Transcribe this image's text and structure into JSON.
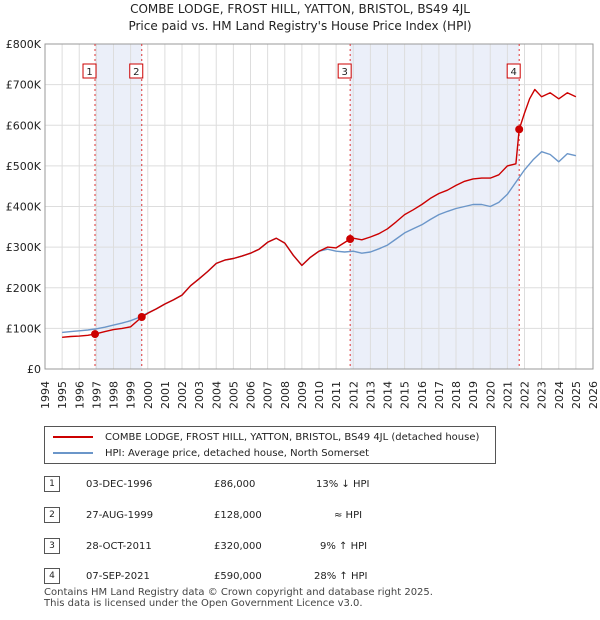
{
  "header": {
    "title": "COMBE LODGE, FROST HILL, YATTON, BRISTOL, BS49 4JL",
    "subtitle": "Price paid vs. HM Land Registry's House Price Index (HPI)"
  },
  "chart_data": {
    "type": "line",
    "xlim": [
      1994,
      2026
    ],
    "ylim": [
      0,
      800000
    ],
    "x_ticks": [
      1994,
      1995,
      1996,
      1997,
      1998,
      1999,
      2000,
      2001,
      2002,
      2003,
      2004,
      2005,
      2006,
      2007,
      2008,
      2009,
      2010,
      2011,
      2012,
      2013,
      2014,
      2015,
      2016,
      2017,
      2018,
      2019,
      2020,
      2021,
      2022,
      2023,
      2024,
      2025,
      2026
    ],
    "y_ticks": [
      {
        "value": 0,
        "label": "£0"
      },
      {
        "value": 100000,
        "label": "£100K"
      },
      {
        "value": 200000,
        "label": "£200K"
      },
      {
        "value": 300000,
        "label": "£300K"
      },
      {
        "value": 400000,
        "label": "£400K"
      },
      {
        "value": 500000,
        "label": "£500K"
      },
      {
        "value": 600000,
        "label": "£600K"
      },
      {
        "value": 700000,
        "label": "£700K"
      },
      {
        "value": 800000,
        "label": "£800K"
      }
    ],
    "grid": true,
    "series": [
      {
        "name": "COMBE LODGE, FROST HILL, YATTON, BRISTOL, BS49 4JL (detached house)",
        "color": "#cc0000",
        "x": [
          1995.0,
          1995.5,
          1996.0,
          1996.5,
          1996.92,
          1997.5,
          1998.0,
          1998.5,
          1999.0,
          1999.65,
          2000.0,
          2000.5,
          2001.0,
          2001.5,
          2002.0,
          2002.5,
          2003.0,
          2003.5,
          2004.0,
          2004.5,
          2005.0,
          2005.5,
          2006.0,
          2006.5,
          2007.0,
          2007.5,
          2008.0,
          2008.5,
          2009.0,
          2009.5,
          2010.0,
          2010.5,
          2011.0,
          2011.82,
          2012.0,
          2012.5,
          2013.0,
          2013.5,
          2014.0,
          2014.5,
          2015.0,
          2015.5,
          2016.0,
          2016.5,
          2017.0,
          2017.5,
          2018.0,
          2018.5,
          2019.0,
          2019.5,
          2020.0,
          2020.5,
          2021.0,
          2021.5,
          2021.69,
          2022.0,
          2022.3,
          2022.6,
          2023.0,
          2023.5,
          2024.0,
          2024.5,
          2025.0
        ],
        "y": [
          78000,
          80000,
          81000,
          83000,
          86000,
          92000,
          97000,
          100000,
          104000,
          128000,
          137000,
          148000,
          160000,
          170000,
          182000,
          205000,
          222000,
          240000,
          260000,
          268000,
          272000,
          278000,
          285000,
          295000,
          312000,
          322000,
          310000,
          280000,
          255000,
          275000,
          290000,
          300000,
          298000,
          320000,
          322000,
          318000,
          325000,
          333000,
          345000,
          362000,
          380000,
          392000,
          405000,
          420000,
          432000,
          440000,
          452000,
          462000,
          468000,
          470000,
          470000,
          478000,
          500000,
          505000,
          590000,
          630000,
          665000,
          688000,
          670000,
          680000,
          665000,
          680000,
          670000
        ]
      },
      {
        "name": "HPI: Average price, detached house, North Somerset",
        "color": "#6b96c9",
        "x": [
          1995.0,
          1995.5,
          1996.0,
          1996.5,
          1997.0,
          1997.5,
          1998.0,
          1998.5,
          1999.0,
          1999.5,
          2000.0,
          2000.5,
          2001.0,
          2001.5,
          2002.0,
          2002.5,
          2003.0,
          2003.5,
          2004.0,
          2004.5,
          2005.0,
          2005.5,
          2006.0,
          2006.5,
          2007.0,
          2007.5,
          2008.0,
          2008.5,
          2009.0,
          2009.5,
          2010.0,
          2010.5,
          2011.0,
          2011.5,
          2012.0,
          2012.5,
          2013.0,
          2013.5,
          2014.0,
          2014.5,
          2015.0,
          2015.5,
          2016.0,
          2016.5,
          2017.0,
          2017.5,
          2018.0,
          2018.5,
          2019.0,
          2019.5,
          2020.0,
          2020.5,
          2021.0,
          2021.5,
          2022.0,
          2022.5,
          2023.0,
          2023.5,
          2024.0,
          2024.5,
          2025.0
        ],
        "y": [
          90000,
          92000,
          94000,
          96000,
          99000,
          103000,
          108000,
          113000,
          119000,
          127000,
          138000,
          148000,
          160000,
          170000,
          182000,
          205000,
          222000,
          240000,
          260000,
          268000,
          272000,
          278000,
          285000,
          295000,
          312000,
          322000,
          310000,
          280000,
          255000,
          275000,
          290000,
          295000,
          290000,
          288000,
          290000,
          285000,
          288000,
          296000,
          305000,
          320000,
          335000,
          345000,
          355000,
          368000,
          380000,
          388000,
          395000,
          400000,
          405000,
          405000,
          400000,
          410000,
          430000,
          460000,
          490000,
          515000,
          535000,
          528000,
          510000,
          530000,
          525000
        ]
      }
    ],
    "sales": [
      {
        "label": "1",
        "x": 1996.92,
        "y": 86000
      },
      {
        "label": "2",
        "x": 1999.65,
        "y": 128000
      },
      {
        "label": "3",
        "x": 2011.82,
        "y": 320000
      },
      {
        "label": "4",
        "x": 2021.69,
        "y": 590000
      }
    ],
    "shaded_ranges": [
      [
        1996.92,
        1999.65
      ],
      [
        2011.82,
        2021.69
      ]
    ]
  },
  "legend": [
    {
      "label": "COMBE LODGE, FROST HILL, YATTON, BRISTOL, BS49 4JL (detached house)",
      "color": "#cc0000"
    },
    {
      "label": "HPI: Average price, detached house, North Somerset",
      "color": "#6b96c9"
    }
  ],
  "transactions": [
    {
      "num": "1",
      "date": "03-DEC-1996",
      "price": "£86,000",
      "hpi": "13% ↓ HPI"
    },
    {
      "num": "2",
      "date": "27-AUG-1999",
      "price": "£128,000",
      "hpi": "≈ HPI"
    },
    {
      "num": "3",
      "date": "28-OCT-2011",
      "price": "£320,000",
      "hpi": "9% ↑ HPI"
    },
    {
      "num": "4",
      "date": "07-SEP-2021",
      "price": "£590,000",
      "hpi": "28% ↑ HPI"
    }
  ],
  "footer": {
    "line1": "Contains HM Land Registry data © Crown copyright and database right 2025.",
    "line2": "This data is licensed under the Open Government Licence v3.0."
  }
}
